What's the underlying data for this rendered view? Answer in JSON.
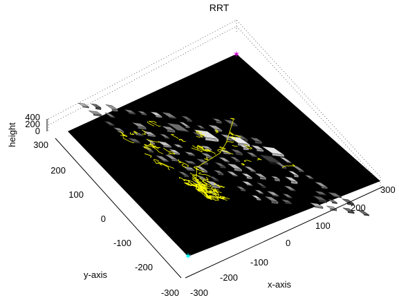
{
  "chart_data": {
    "type": "scatter",
    "title": "RRT",
    "xlabel": "x-axis",
    "ylabel": "y-axis",
    "zlabel": "height",
    "xlim": [
      -300,
      300
    ],
    "ylim": [
      -300,
      300
    ],
    "zlim": [
      0,
      400
    ],
    "x_ticks": [
      "-300",
      "-200",
      "-100",
      "0",
      "100",
      "200",
      "300"
    ],
    "y_ticks": [
      "-300",
      "-200",
      "-100",
      "0",
      "100",
      "200",
      "300"
    ],
    "z_ticks": [
      "400",
      "200",
      "0"
    ],
    "grid": true,
    "background_color": "#000000",
    "tree_color": "#ffff00",
    "start": {
      "x": -290,
      "y": -290,
      "z": 0,
      "color": "#00ffff"
    },
    "goal": {
      "x": 290,
      "y": 290,
      "z": 0,
      "color": "#cc00cc"
    },
    "path_nodes": [
      {
        "x": -290,
        "y": -290
      },
      {
        "x": -230,
        "y": -170
      },
      {
        "x": -150,
        "y": -80
      },
      {
        "x": -60,
        "y": -20
      },
      {
        "x": 30,
        "y": 40
      },
      {
        "x": 120,
        "y": 120
      },
      {
        "x": 200,
        "y": 200
      },
      {
        "x": 290,
        "y": 290
      }
    ]
  }
}
